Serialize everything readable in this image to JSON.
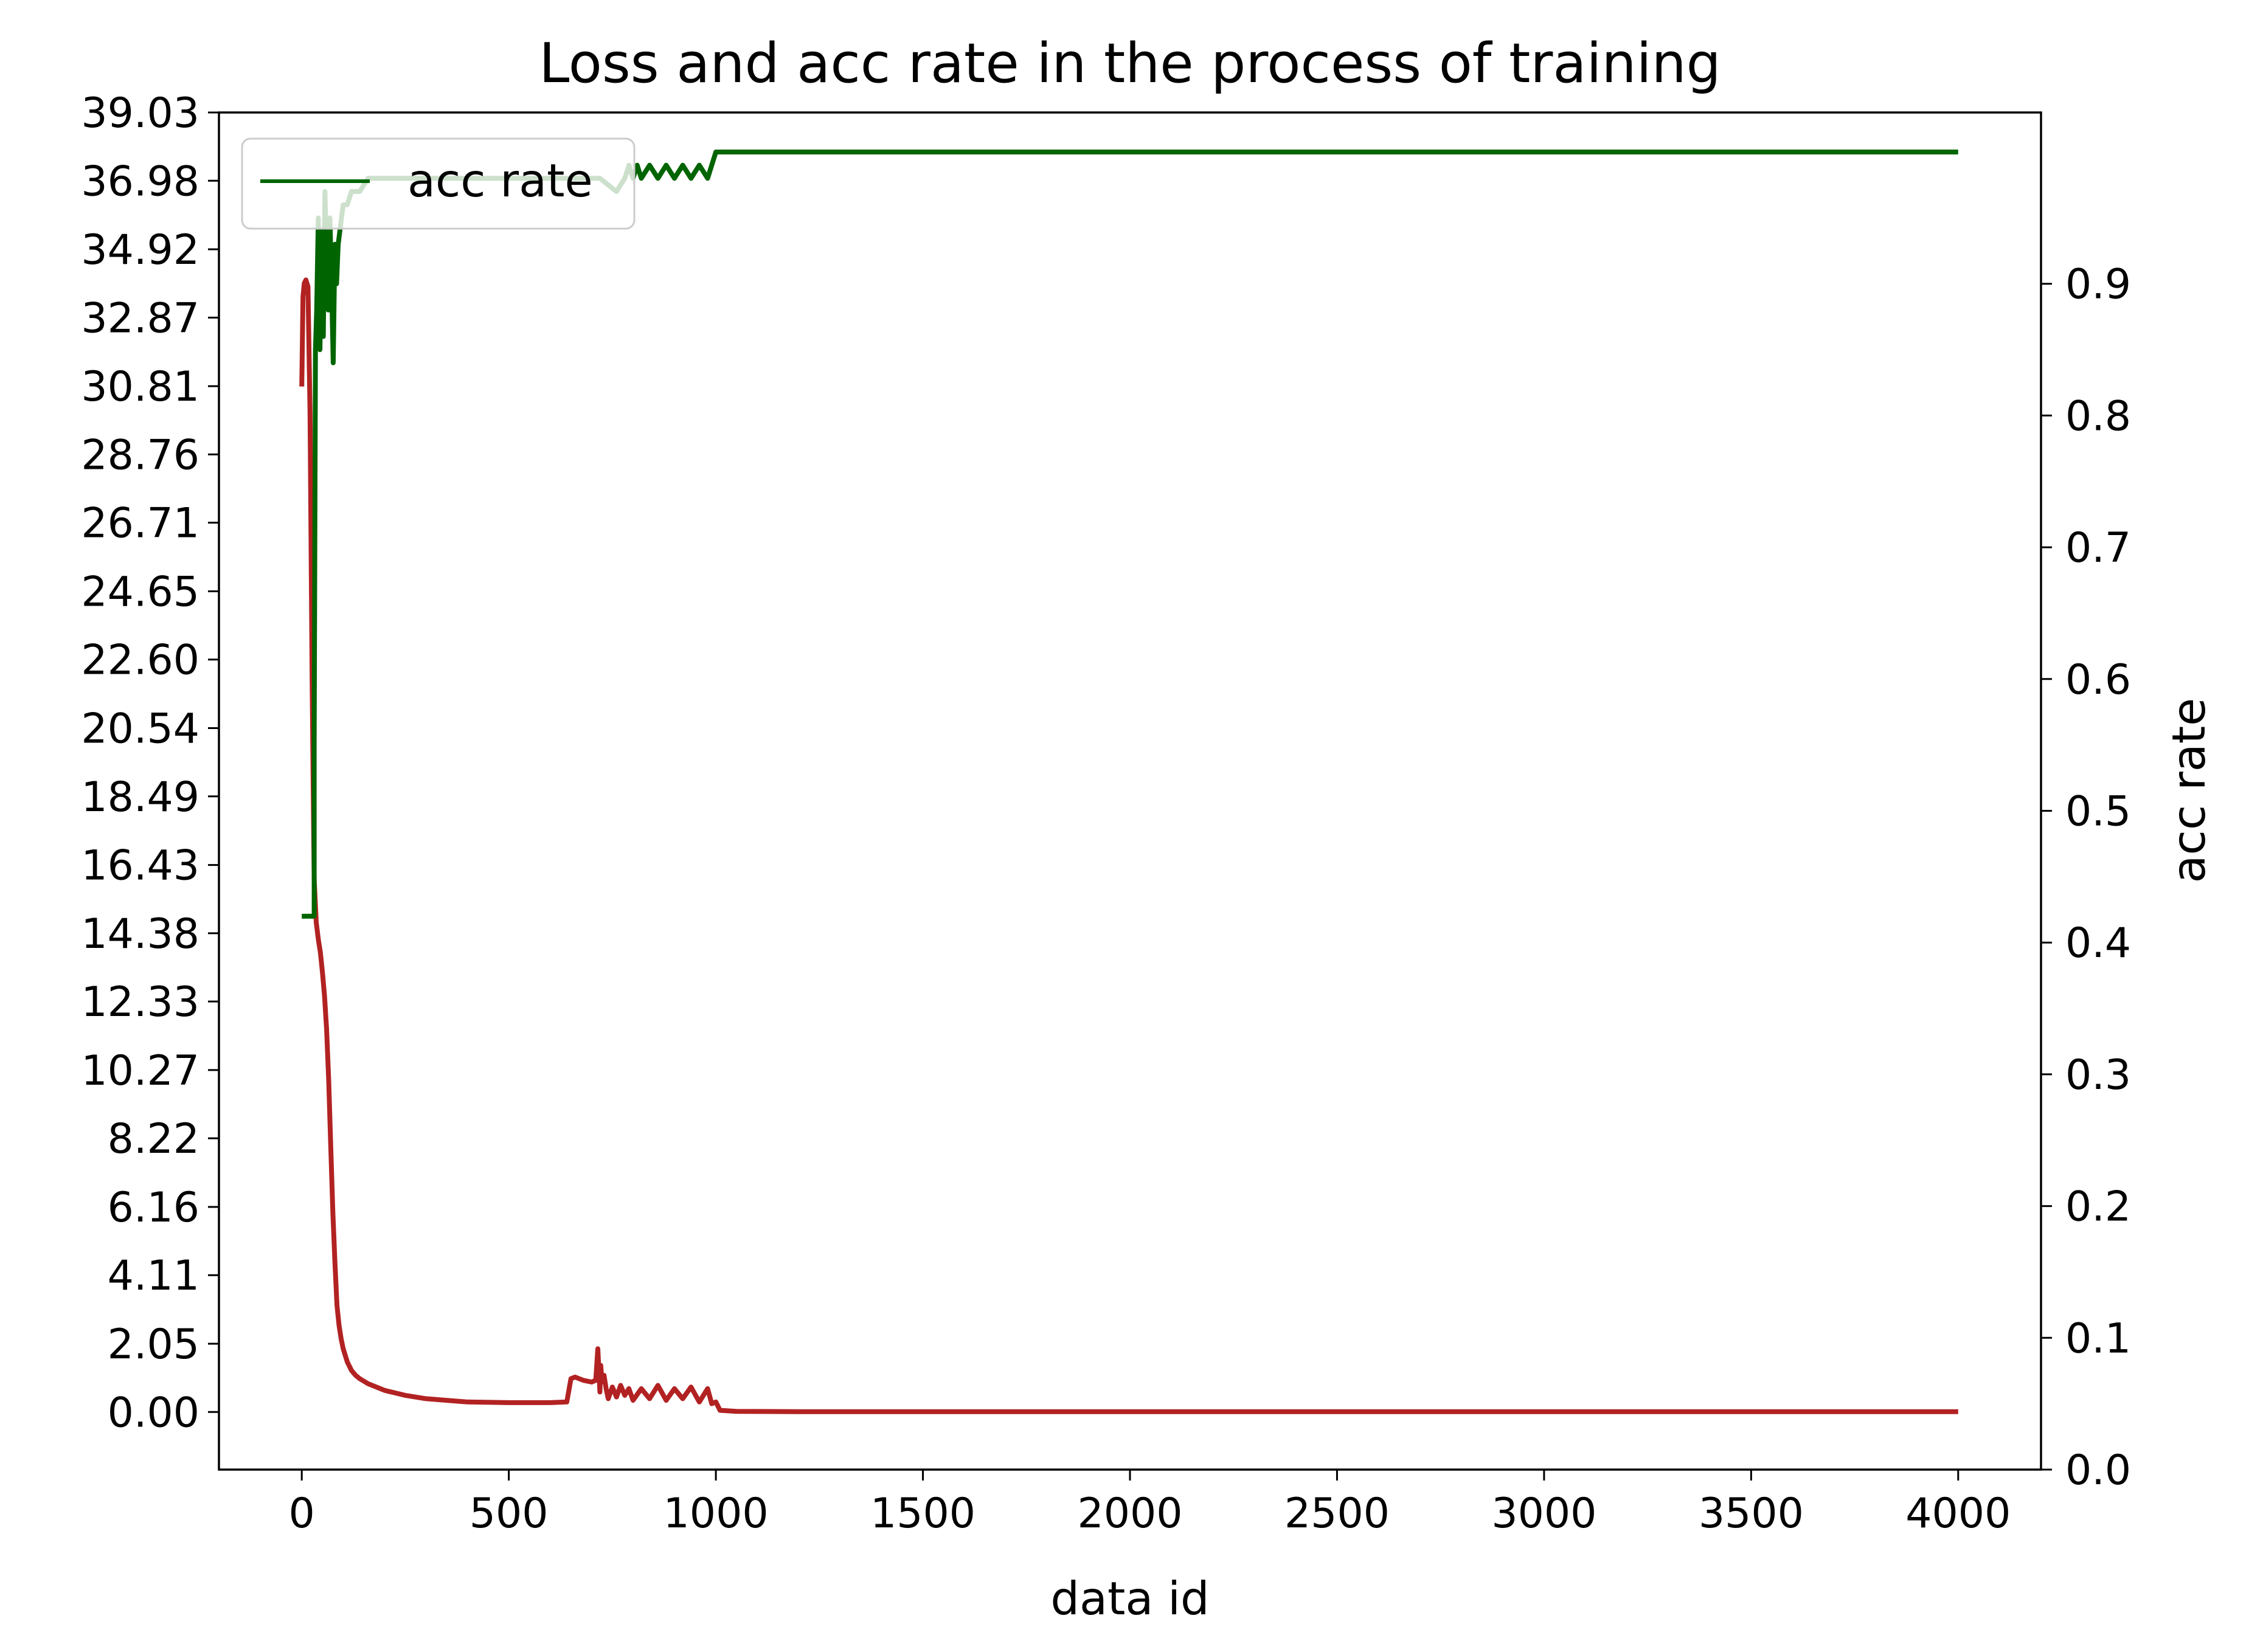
{
  "chart_data": {
    "type": "line",
    "title": "Loss and acc rate in the process of training",
    "xlabel": "data id",
    "ylabel_left": "",
    "ylabel_right": "acc rate",
    "xlim": [
      -200,
      4200
    ],
    "xticks": [
      "0",
      "500",
      "1000",
      "1500",
      "2000",
      "2500",
      "3000",
      "3500",
      "4000"
    ],
    "ylim_left": [
      -1.73,
      39.03
    ],
    "yticks_left": [
      "0.00",
      "2.05",
      "4.11",
      "6.16",
      "8.22",
      "10.27",
      "12.33",
      "14.38",
      "16.43",
      "18.49",
      "20.54",
      "22.60",
      "24.65",
      "26.71",
      "28.76",
      "30.81",
      "32.87",
      "34.92",
      "36.98",
      "39.03"
    ],
    "ylim_right": [
      0.0,
      1.03
    ],
    "yticks_right": [
      "0.0",
      "0.1",
      "0.2",
      "0.3",
      "0.4",
      "0.5",
      "0.6",
      "0.7",
      "0.8",
      "0.9"
    ],
    "legend": {
      "entries": [
        "acc rate"
      ],
      "placement": "upper-left"
    },
    "grid": false,
    "colors": {
      "loss": "#b22222",
      "acc": "#006400"
    },
    "series": [
      {
        "axis": "left",
        "color": "#b22222",
        "x": [
          0,
          3,
          6,
          10,
          15,
          20,
          25,
          30,
          35,
          40,
          45,
          50,
          55,
          60,
          65,
          70,
          75,
          80,
          85,
          90,
          95,
          100,
          110,
          120,
          130,
          140,
          160,
          200,
          250,
          300,
          400,
          500,
          600,
          640,
          650,
          660,
          680,
          700,
          710,
          715,
          720,
          722,
          725,
          730,
          735,
          740,
          750,
          760,
          770,
          780,
          790,
          800,
          820,
          840,
          860,
          880,
          900,
          920,
          940,
          960,
          980,
          990,
          1000,
          1010,
          1050,
          1200,
          1500,
          2000,
          2500,
          3000,
          3500,
          4000
        ],
        "y": [
          30.8,
          33.5,
          33.9,
          34.0,
          33.8,
          30.0,
          22.0,
          16.0,
          14.7,
          14.2,
          13.8,
          13.2,
          12.5,
          11.5,
          10.0,
          8.0,
          6.0,
          4.5,
          3.2,
          2.6,
          2.2,
          1.9,
          1.5,
          1.25,
          1.1,
          1.0,
          0.85,
          0.65,
          0.5,
          0.4,
          0.3,
          0.28,
          0.28,
          0.3,
          1.0,
          1.05,
          0.95,
          0.9,
          0.95,
          1.9,
          0.6,
          1.4,
          0.9,
          1.1,
          0.7,
          0.4,
          0.75,
          0.45,
          0.8,
          0.5,
          0.7,
          0.35,
          0.7,
          0.4,
          0.8,
          0.35,
          0.7,
          0.4,
          0.75,
          0.3,
          0.7,
          0.25,
          0.3,
          0.05,
          0.02,
          0.01,
          0.01,
          0.01,
          0.01,
          0.01,
          0.01,
          0.01
        ]
      },
      {
        "axis": "right",
        "name": "acc rate",
        "color": "#006400",
        "x": [
          0,
          30,
          30,
          33,
          36,
          40,
          44,
          48,
          52,
          56,
          60,
          64,
          68,
          72,
          76,
          80,
          84,
          88,
          92,
          96,
          100,
          110,
          120,
          140,
          160,
          180,
          200,
          250,
          300,
          400,
          500,
          600,
          640,
          720,
          760,
          780,
          790,
          800,
          810,
          820,
          840,
          860,
          880,
          900,
          920,
          940,
          960,
          980,
          990,
          1000,
          1500,
          2000,
          2500,
          3000,
          3500,
          4000
        ],
        "y": [
          0.42,
          0.42,
          0.55,
          0.85,
          0.88,
          0.95,
          0.85,
          0.94,
          0.86,
          0.97,
          0.92,
          0.88,
          0.95,
          0.9,
          0.84,
          0.93,
          0.9,
          0.93,
          0.94,
          0.95,
          0.96,
          0.96,
          0.97,
          0.97,
          0.98,
          0.98,
          0.98,
          0.98,
          0.98,
          0.98,
          0.98,
          0.98,
          0.98,
          0.98,
          0.97,
          0.98,
          0.99,
          0.98,
          0.99,
          0.98,
          0.99,
          0.98,
          0.99,
          0.98,
          0.99,
          0.98,
          0.99,
          0.98,
          0.99,
          1.0,
          1.0,
          1.0,
          1.0,
          1.0,
          1.0,
          1.0
        ]
      }
    ]
  }
}
